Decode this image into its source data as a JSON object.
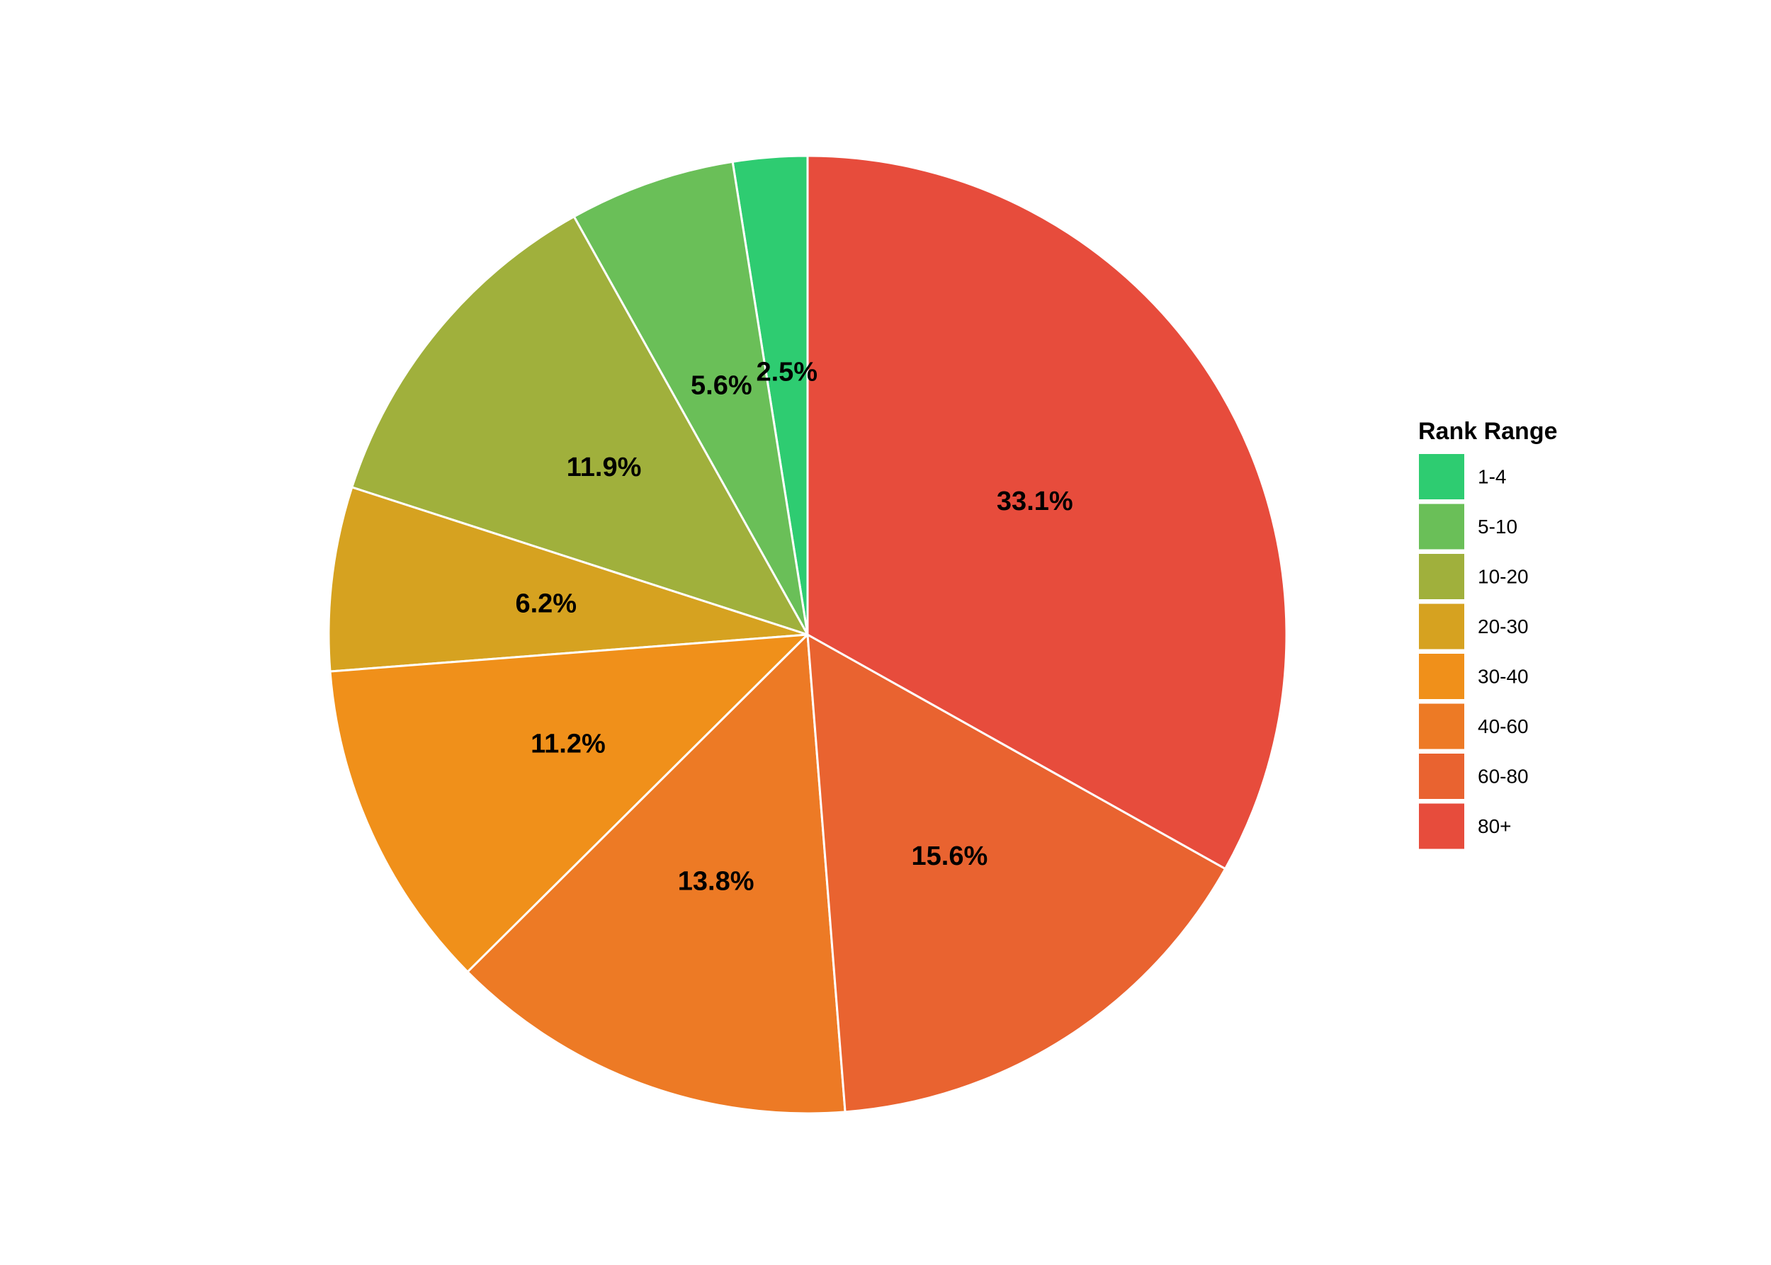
{
  "chart_data": {
    "type": "pie",
    "categories": [
      "1-4",
      "5-10",
      "10-20",
      "20-30",
      "30-40",
      "40-60",
      "60-80",
      "80+"
    ],
    "values": [
      2.5,
      5.6,
      11.9,
      6.2,
      11.2,
      13.8,
      15.6,
      33.1
    ],
    "labels": [
      "2.5%",
      "5.6%",
      "11.9%",
      "6.2%",
      "11.2%",
      "13.8%",
      "15.6%",
      "33.1%"
    ],
    "colors": [
      "#2ecc71",
      "#6abf58",
      "#a0b03c",
      "#d6a220",
      "#f0901a",
      "#ed7a25",
      "#e96330",
      "#e74c3c"
    ],
    "direction": "counterclockwise",
    "start_angle": "top",
    "slice_border_color": "#ffffff",
    "legend": {
      "title": "Rank Range",
      "position": "right"
    }
  }
}
